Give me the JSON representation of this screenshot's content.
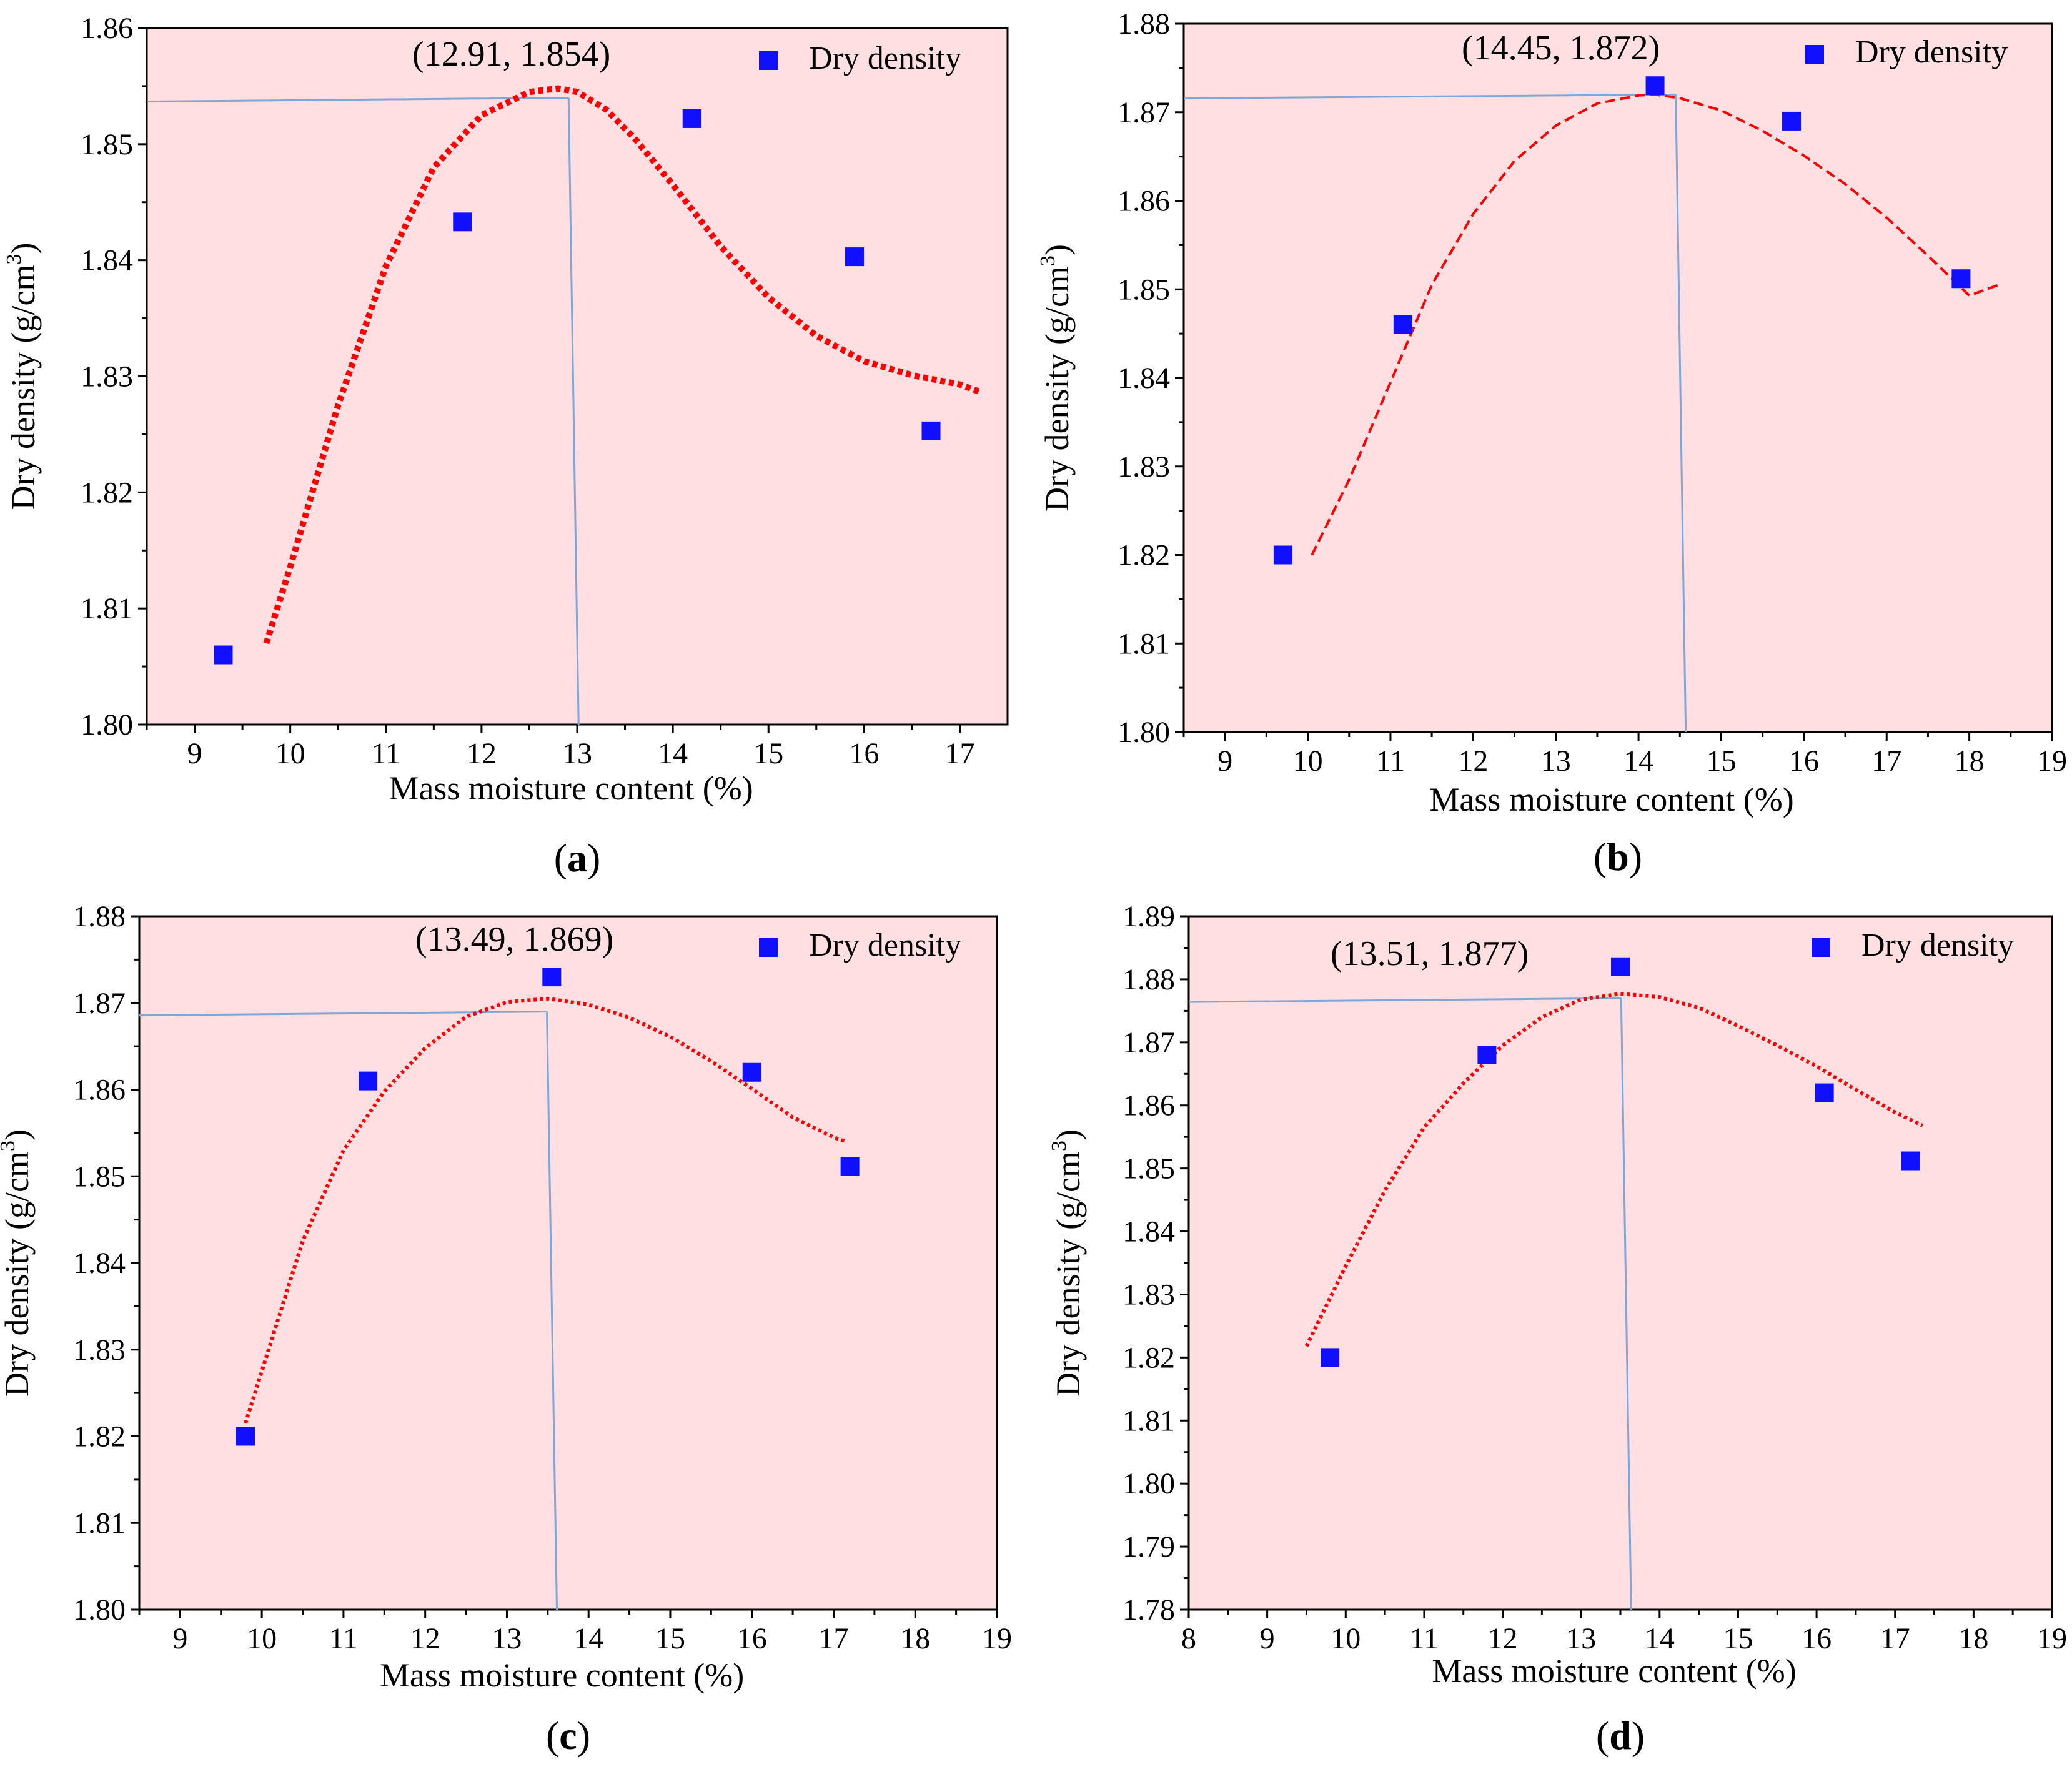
{
  "chart_data": [
    {
      "type": "scatter",
      "panel": "(a)",
      "panel_letter": "a",
      "xlabel": "Mass moisture content (%)",
      "ylabel": "Dry density (g/cm3)",
      "xlim": [
        8.5,
        17.5
      ],
      "ylim": [
        1.8,
        1.86
      ],
      "xticks": [
        9,
        10,
        11,
        12,
        13,
        14,
        15,
        16,
        17
      ],
      "yticks": [
        "1.80",
        "1.81",
        "1.82",
        "1.83",
        "1.84",
        "1.85",
        "1.86"
      ],
      "series": [
        {
          "name": "Dry density",
          "x": [
            9.3,
            11.8,
            14.2,
            15.9,
            16.7
          ],
          "y": [
            1.806,
            1.8433,
            1.8522,
            1.8403,
            1.8253
          ]
        }
      ],
      "fit_curve": {
        "style": "dotted",
        "x": [
          9.75,
          10.0,
          10.5,
          11.0,
          11.5,
          12.0,
          12.5,
          12.8,
          13.0,
          13.3,
          13.6,
          14.0,
          14.5,
          15.0,
          15.5,
          16.0,
          16.5,
          17.0,
          17.2
        ],
        "y": [
          1.807,
          1.8136,
          1.8275,
          1.8395,
          1.848,
          1.8525,
          1.8545,
          1.8548,
          1.8545,
          1.853,
          1.8505,
          1.8465,
          1.8412,
          1.8368,
          1.8335,
          1.8313,
          1.8301,
          1.8293,
          1.8287
        ]
      },
      "optimum": {
        "x": 12.91,
        "y": 1.854,
        "label": "(12.91, 1.854)"
      },
      "legend": "Dry density"
    },
    {
      "type": "scatter",
      "panel": "(b)",
      "panel_letter": "b",
      "xlabel": "Mass moisture content (%)",
      "ylabel": "Dry density (g/cm3)",
      "xlim": [
        8.5,
        19
      ],
      "ylim": [
        1.8,
        1.88
      ],
      "xticks": [
        9,
        10,
        11,
        12,
        13,
        14,
        15,
        16,
        17,
        18,
        19
      ],
      "yticks": [
        "1.80",
        "1.81",
        "1.82",
        "1.83",
        "1.84",
        "1.85",
        "1.86",
        "1.87",
        "1.88"
      ],
      "series": [
        {
          "name": "Dry density",
          "x": [
            9.7,
            11.15,
            14.2,
            15.85,
            17.9
          ],
          "y": [
            1.82,
            1.846,
            1.873,
            1.869,
            1.8512
          ]
        }
      ],
      "fit_curve": {
        "style": "dashed",
        "x": [
          10.05,
          10.5,
          11.0,
          11.5,
          12.0,
          12.5,
          13.0,
          13.5,
          14.0,
          14.2,
          14.5,
          15.0,
          15.5,
          16.0,
          16.5,
          17.0,
          17.5,
          18.0,
          18.35
        ],
        "y": [
          1.82,
          1.8285,
          1.8395,
          1.8505,
          1.8585,
          1.8645,
          1.8685,
          1.871,
          1.8719,
          1.872,
          1.8716,
          1.8702,
          1.8679,
          1.8651,
          1.8619,
          1.8581,
          1.8538,
          1.8493,
          1.8505
        ]
      },
      "optimum": {
        "x": 14.45,
        "y": 1.872,
        "label": "(14.45, 1.872)"
      },
      "legend": "Dry density"
    },
    {
      "type": "scatter",
      "panel": "(c)",
      "panel_letter": "c",
      "xlabel": "Mass moisture content (%)",
      "ylabel": "Dry density (g/cm3)",
      "xlim": [
        8.5,
        19
      ],
      "ylim": [
        1.8,
        1.88
      ],
      "xticks": [
        9,
        10,
        11,
        12,
        13,
        14,
        15,
        16,
        17,
        18,
        19
      ],
      "yticks": [
        "1.80",
        "1.81",
        "1.82",
        "1.83",
        "1.84",
        "1.85",
        "1.86",
        "1.87",
        "1.88"
      ],
      "series": [
        {
          "name": "Dry density",
          "x": [
            9.8,
            11.3,
            13.55,
            16.0,
            17.2
          ],
          "y": [
            1.82,
            1.861,
            1.873,
            1.862,
            1.8511
          ]
        }
      ],
      "fit_curve": {
        "style": "dotted",
        "x": [
          9.8,
          10.0,
          10.5,
          11.0,
          11.5,
          12.0,
          12.5,
          13.0,
          13.5,
          14.0,
          14.5,
          15.0,
          15.5,
          16.0,
          16.5,
          17.0,
          17.15
        ],
        "y": [
          1.8215,
          1.8275,
          1.8425,
          1.853,
          1.8598,
          1.8648,
          1.8684,
          1.8701,
          1.8705,
          1.8698,
          1.8683,
          1.8661,
          1.8633,
          1.8601,
          1.8568,
          1.8545,
          1.854
        ]
      },
      "optimum": {
        "x": 13.49,
        "y": 1.869,
        "label": "(13.49, 1.869)"
      },
      "legend": "Dry density"
    },
    {
      "type": "scatter",
      "panel": "(d)",
      "panel_letter": "d",
      "xlabel": "Mass moisture content (%)",
      "ylabel": "Dry density (g/cm3)",
      "xlim": [
        8,
        19
      ],
      "ylim": [
        1.78,
        1.89
      ],
      "xticks": [
        8,
        9,
        10,
        11,
        12,
        13,
        14,
        15,
        16,
        17,
        18,
        19
      ],
      "yticks": [
        "1.78",
        "1.79",
        "1.80",
        "1.81",
        "1.82",
        "1.83",
        "1.84",
        "1.85",
        "1.86",
        "1.87",
        "1.88",
        "1.89"
      ],
      "series": [
        {
          "name": "Dry density",
          "x": [
            9.8,
            11.8,
            13.5,
            16.1,
            17.2
          ],
          "y": [
            1.82,
            1.868,
            1.882,
            1.862,
            1.8512
          ]
        }
      ],
      "fit_curve": {
        "style": "dotted",
        "x": [
          9.5,
          10.0,
          10.5,
          11.0,
          11.5,
          12.0,
          12.5,
          13.0,
          13.5,
          14.0,
          14.5,
          15.0,
          15.5,
          16.0,
          16.5,
          17.0,
          17.35
        ],
        "y": [
          1.8218,
          1.8345,
          1.8465,
          1.8565,
          1.8635,
          1.8695,
          1.874,
          1.8768,
          1.8777,
          1.8772,
          1.8755,
          1.8726,
          1.8695,
          1.8662,
          1.8625,
          1.8589,
          1.8568
        ]
      },
      "optimum": {
        "x": 13.51,
        "y": 1.877,
        "label": "(13.51, 1.877)"
      },
      "legend": "Dry density"
    }
  ]
}
